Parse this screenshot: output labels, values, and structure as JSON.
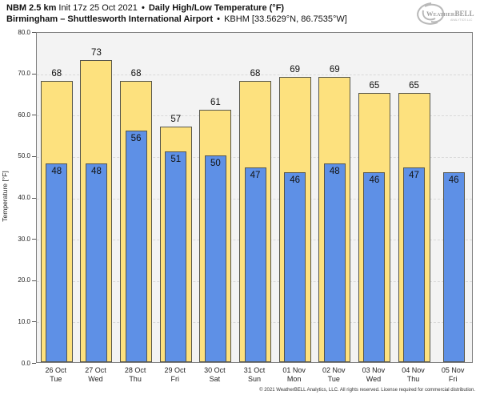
{
  "header": {
    "model": "NBM 2.5 km",
    "init": "Init 17z 25 Oct 2021",
    "separator": "•",
    "product": "Daily High/Low Temperature (°F)",
    "location": "Birmingham – Shuttlesworth International Airport",
    "station": "KBHM [33.5629°N, 86.7535°W]",
    "logo_text": "WeatherBELL",
    "logo_icon": "hurricane-swirl"
  },
  "chart_data": {
    "type": "bar",
    "title": "NBM 2.5 km Daily High/Low Temperature (°F) — Birmingham KBHM",
    "ylabel": "Temperature [°F]",
    "ylim": [
      0,
      80
    ],
    "ytick_step": 10,
    "grid": true,
    "legend_position": "none",
    "plot_bg": "#f3f3f3",
    "grid_color": "#d9d9d9",
    "bar_border_color": "#56564c",
    "categories": [
      {
        "date": "26 Oct",
        "day": "Tue"
      },
      {
        "date": "27 Oct",
        "day": "Wed"
      },
      {
        "date": "28 Oct",
        "day": "Thu"
      },
      {
        "date": "29 Oct",
        "day": "Fri"
      },
      {
        "date": "30 Oct",
        "day": "Sat"
      },
      {
        "date": "31 Oct",
        "day": "Sun"
      },
      {
        "date": "01 Nov",
        "day": "Mon"
      },
      {
        "date": "02 Nov",
        "day": "Tue"
      },
      {
        "date": "03 Nov",
        "day": "Wed"
      },
      {
        "date": "04 Nov",
        "day": "Thu"
      },
      {
        "date": "05 Nov",
        "day": "Fri"
      }
    ],
    "series": [
      {
        "name": "High",
        "color": "#fde17e",
        "values": [
          68,
          73,
          68,
          57,
          61,
          68,
          69,
          69,
          65,
          65,
          null
        ]
      },
      {
        "name": "Low",
        "color": "#5e90e6",
        "values": [
          48,
          48,
          56,
          51,
          50,
          47,
          46,
          48,
          46,
          47,
          46
        ]
      }
    ]
  },
  "footer": {
    "copyright": "© 2021 WeatherBELL Analytics, LLC. All rights reserved. License required for commercial distribution."
  }
}
